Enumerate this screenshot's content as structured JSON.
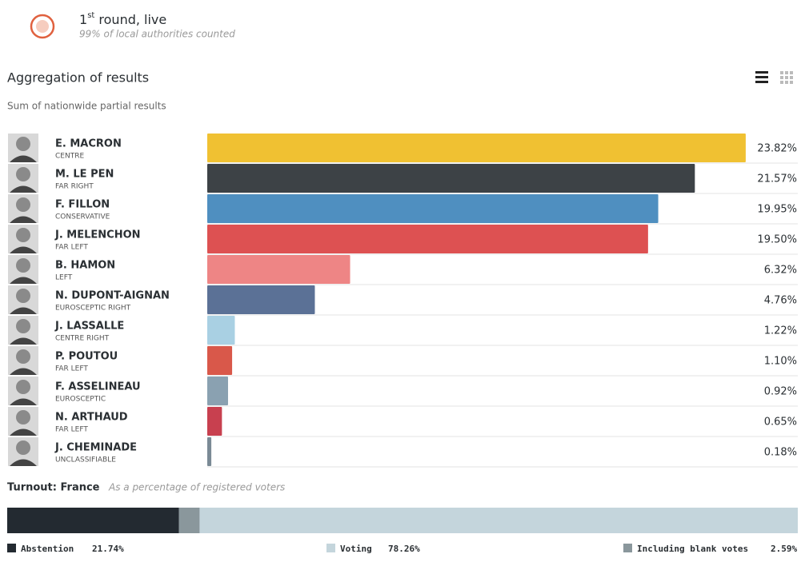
{
  "header": {
    "title_main": "1",
    "title_sup": "st",
    "title_rest": " round, live",
    "note": "99% of local authorities counted"
  },
  "chart_data": [
    {
      "type": "bar",
      "title": "Aggregation of results",
      "subtitle": "Sum of nationwide partial results",
      "categories": [
        "E. MACRON",
        "M. LE PEN",
        "F. FILLON",
        "J. MELENCHON",
        "B. HAMON",
        "N. DUPONT-AIGNAN",
        "J. LASSALLE",
        "P. POUTOU",
        "F. ASSELINEAU",
        "N. ARTHAUD",
        "J. CHEMINADE"
      ],
      "groups": [
        "CENTRE",
        "FAR RIGHT",
        "CONSERVATIVE",
        "FAR LEFT",
        "LEFT",
        "EUROSCEPTIC RIGHT",
        "CENTRE RIGHT",
        "FAR LEFT",
        "EUROSCEPTIC",
        "FAR LEFT",
        "UNCLASSIFIABLE"
      ],
      "values": [
        23.82,
        21.57,
        19.95,
        19.5,
        6.32,
        4.76,
        1.22,
        1.1,
        0.92,
        0.65,
        0.18
      ],
      "value_labels": [
        "23.82%",
        "21.57%",
        "19.95%",
        "19.50%",
        "6.32%",
        "4.76%",
        "1.22%",
        "1.10%",
        "0.92%",
        "0.65%",
        "0.18%"
      ],
      "colors": [
        "#f0c132",
        "#3d4246",
        "#4f8fc0",
        "#dd5152",
        "#ee8585",
        "#5b7196",
        "#a9d0e3",
        "#d9584a",
        "#8aa1b1",
        "#c8404f",
        "#7a8a95"
      ]
    },
    {
      "type": "stacked-bar",
      "title": "Turnout: France",
      "subtitle": "As a percentage of registered voters",
      "series": [
        {
          "name": "Abstention",
          "color": "#232a31",
          "values": [
            21.74
          ],
          "value_labels": [
            "21.74%"
          ]
        },
        {
          "name": "Voting",
          "color": "#c4d5dc",
          "values": [
            78.26
          ],
          "value_labels": [
            "78.26%"
          ]
        },
        {
          "name": "Including blank votes",
          "color": "#8a979c",
          "values": [
            2.59
          ],
          "value_labels": [
            "2.59%"
          ]
        }
      ]
    }
  ]
}
